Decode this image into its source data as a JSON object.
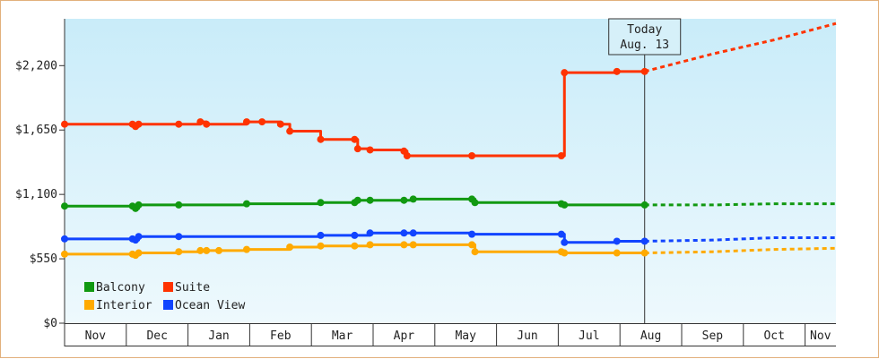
{
  "chart_data": {
    "type": "line",
    "title": "",
    "xlabel": "",
    "ylabel": "",
    "ylim": [
      0,
      2600
    ],
    "y_ticks": [
      {
        "value": 0,
        "label": "$0"
      },
      {
        "value": 550,
        "label": "$550"
      },
      {
        "value": 1100,
        "label": "$1,100"
      },
      {
        "value": 1650,
        "label": "$1,650"
      },
      {
        "value": 2200,
        "label": "$2,200"
      }
    ],
    "x_range": [
      0,
      12.5
    ],
    "months": [
      {
        "label": "Nov",
        "start": 0
      },
      {
        "label": "Dec",
        "start": 1
      },
      {
        "label": "Jan",
        "start": 2
      },
      {
        "label": "Feb",
        "start": 3
      },
      {
        "label": "Mar",
        "start": 4
      },
      {
        "label": "Apr",
        "start": 5
      },
      {
        "label": "May",
        "start": 6
      },
      {
        "label": "Jun",
        "start": 7
      },
      {
        "label": "Jul",
        "start": 8
      },
      {
        "label": "Aug",
        "start": 9
      },
      {
        "label": "Sep",
        "start": 10
      },
      {
        "label": "Oct",
        "start": 11
      },
      {
        "label": "Nov",
        "start": 12
      }
    ],
    "today": {
      "x": 9.4,
      "line1": "Today",
      "line2": "Aug. 13"
    },
    "legend_placement": "bottom-left",
    "step": true,
    "series": [
      {
        "name": "Suite",
        "color": "#ff3300",
        "points": [
          [
            0,
            1700
          ],
          [
            1.1,
            1700
          ],
          [
            1.15,
            1680
          ],
          [
            1.2,
            1700
          ],
          [
            1.85,
            1700
          ],
          [
            2.2,
            1720
          ],
          [
            2.3,
            1700
          ],
          [
            2.95,
            1720
          ],
          [
            3.2,
            1720
          ],
          [
            3.5,
            1700
          ],
          [
            3.65,
            1640
          ],
          [
            4.15,
            1570
          ],
          [
            4.7,
            1570
          ],
          [
            4.75,
            1490
          ],
          [
            4.95,
            1480
          ],
          [
            5.5,
            1470
          ],
          [
            5.55,
            1430
          ],
          [
            6.6,
            1430
          ],
          [
            8.05,
            1430
          ],
          [
            8.1,
            2140
          ],
          [
            8.95,
            2150
          ],
          [
            9.4,
            2150
          ]
        ],
        "forecast": [
          [
            9.4,
            2150
          ],
          [
            10.5,
            2300
          ],
          [
            11.5,
            2420
          ],
          [
            12.5,
            2560
          ]
        ]
      },
      {
        "name": "Balcony",
        "color": "#119911",
        "points": [
          [
            0,
            1000
          ],
          [
            1.1,
            1000
          ],
          [
            1.15,
            980
          ],
          [
            1.2,
            1010
          ],
          [
            1.85,
            1010
          ],
          [
            2.95,
            1020
          ],
          [
            4.15,
            1030
          ],
          [
            4.7,
            1030
          ],
          [
            4.75,
            1050
          ],
          [
            4.95,
            1050
          ],
          [
            5.5,
            1050
          ],
          [
            5.65,
            1060
          ],
          [
            6.6,
            1060
          ],
          [
            6.65,
            1030
          ],
          [
            8.05,
            1020
          ],
          [
            8.1,
            1010
          ],
          [
            9.4,
            1010
          ]
        ],
        "forecast": [
          [
            9.4,
            1010
          ],
          [
            10.5,
            1010
          ],
          [
            11.5,
            1020
          ],
          [
            12.5,
            1020
          ]
        ]
      },
      {
        "name": "Ocean View",
        "color": "#1144ff",
        "points": [
          [
            0,
            720
          ],
          [
            1.1,
            720
          ],
          [
            1.15,
            710
          ],
          [
            1.2,
            740
          ],
          [
            1.85,
            740
          ],
          [
            4.15,
            750
          ],
          [
            4.7,
            750
          ],
          [
            4.95,
            770
          ],
          [
            5.5,
            770
          ],
          [
            5.65,
            770
          ],
          [
            6.6,
            760
          ],
          [
            8.05,
            760
          ],
          [
            8.1,
            690
          ],
          [
            8.95,
            700
          ],
          [
            9.4,
            700
          ]
        ],
        "forecast": [
          [
            9.4,
            700
          ],
          [
            10.5,
            710
          ],
          [
            11.5,
            730
          ],
          [
            12.5,
            730
          ]
        ]
      },
      {
        "name": "Interior",
        "color": "#ffaa00",
        "points": [
          [
            0,
            590
          ],
          [
            1.1,
            590
          ],
          [
            1.15,
            580
          ],
          [
            1.2,
            600
          ],
          [
            1.85,
            610
          ],
          [
            2.2,
            620
          ],
          [
            2.3,
            620
          ],
          [
            2.5,
            620
          ],
          [
            2.95,
            630
          ],
          [
            3.65,
            650
          ],
          [
            4.15,
            660
          ],
          [
            4.7,
            660
          ],
          [
            4.95,
            670
          ],
          [
            5.5,
            670
          ],
          [
            5.65,
            670
          ],
          [
            6.6,
            670
          ],
          [
            6.65,
            610
          ],
          [
            8.05,
            610
          ],
          [
            8.1,
            600
          ],
          [
            8.95,
            600
          ],
          [
            9.4,
            600
          ]
        ],
        "forecast": [
          [
            9.4,
            600
          ],
          [
            10.5,
            610
          ],
          [
            11.5,
            630
          ],
          [
            12.5,
            640
          ]
        ]
      }
    ],
    "legend": [
      {
        "name": "Balcony",
        "color": "#119911"
      },
      {
        "name": "Suite",
        "color": "#ff3300"
      },
      {
        "name": "Interior",
        "color": "#ffaa00"
      },
      {
        "name": "Ocean View",
        "color": "#1144ff"
      }
    ]
  }
}
